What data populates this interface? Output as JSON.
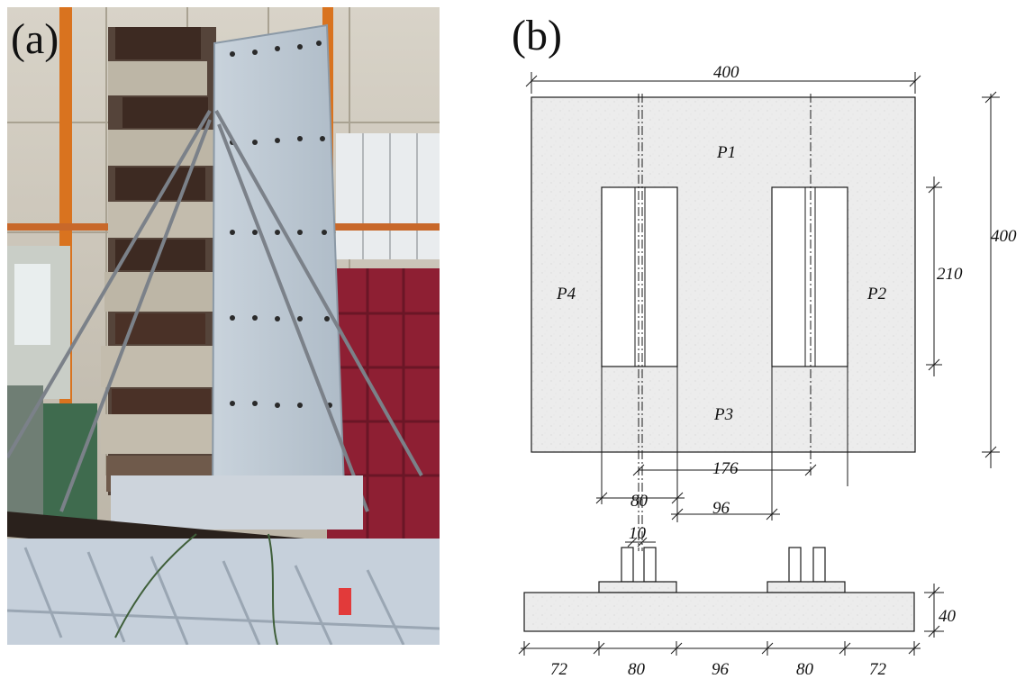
{
  "panels": {
    "a": {
      "label": "(a)"
    },
    "b": {
      "label": "(b)"
    }
  },
  "drawing": {
    "zones": {
      "p1": "P1",
      "p2": "P2",
      "p3": "P3",
      "p4": "P4"
    },
    "dimensions": {
      "top_width": "400",
      "right_height": "400",
      "opening_height": "210",
      "axis_spacing": "176",
      "opening_width": "80",
      "pier_between": "96",
      "flange_gap": "10",
      "slab_thickness": "40",
      "bottom_chain": [
        "72",
        "80",
        "96",
        "80",
        "72"
      ]
    }
  },
  "colors": {
    "concrete": "#ececec",
    "line": "#1a1a1a",
    "hall_wall": "#cfcabf",
    "orange_column": "#d9731f",
    "red_frame": "#8e1f33",
    "steel_blue": "#b9c6d6",
    "block_grey": "#bdb6a6",
    "block_dark": "#3d2a22"
  }
}
